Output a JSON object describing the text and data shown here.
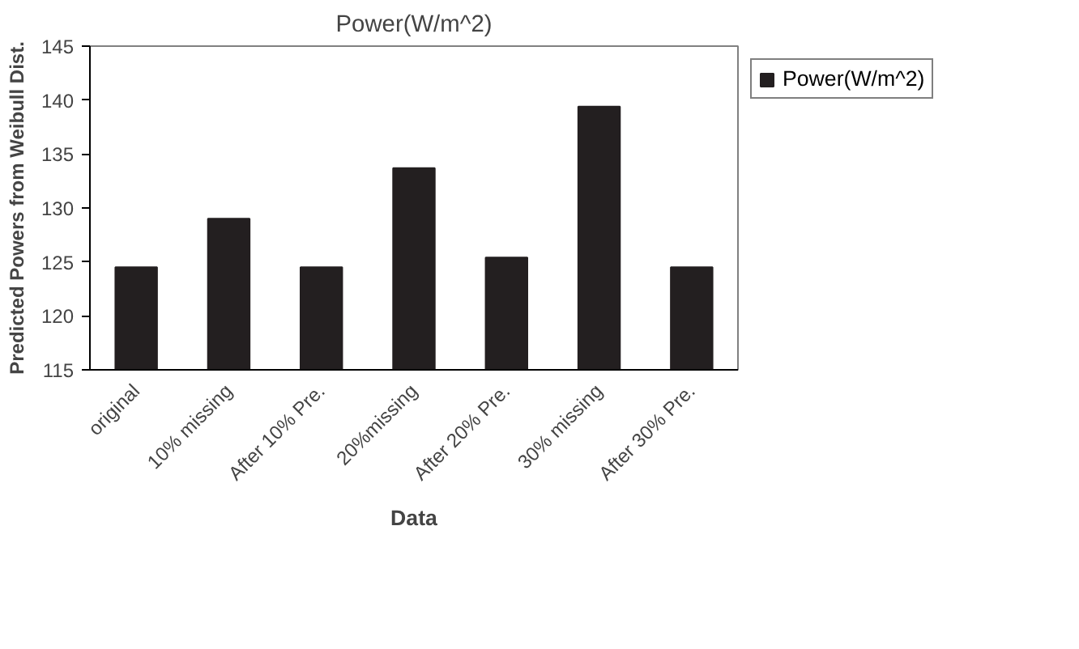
{
  "chart_data": {
    "type": "bar",
    "title": "Power(W/m^2)",
    "xlabel": "Data",
    "ylabel": "Predicted Powers from Weibull Dist.",
    "categories": [
      "original",
      "10% missing",
      "After 10% Pre.",
      "20%missing",
      "After 20% Pre.",
      "30% missing",
      "After 30% Pre."
    ],
    "series": [
      {
        "name": "Power(W/m^2)",
        "color": "#231f20",
        "values": [
          124.5,
          129,
          124.5,
          133.7,
          125.4,
          139.4,
          124.5
        ]
      }
    ],
    "ylim": [
      115,
      145
    ],
    "yticks": [
      115,
      120,
      125,
      130,
      135,
      140,
      145
    ],
    "grid": false,
    "legend": "right"
  }
}
